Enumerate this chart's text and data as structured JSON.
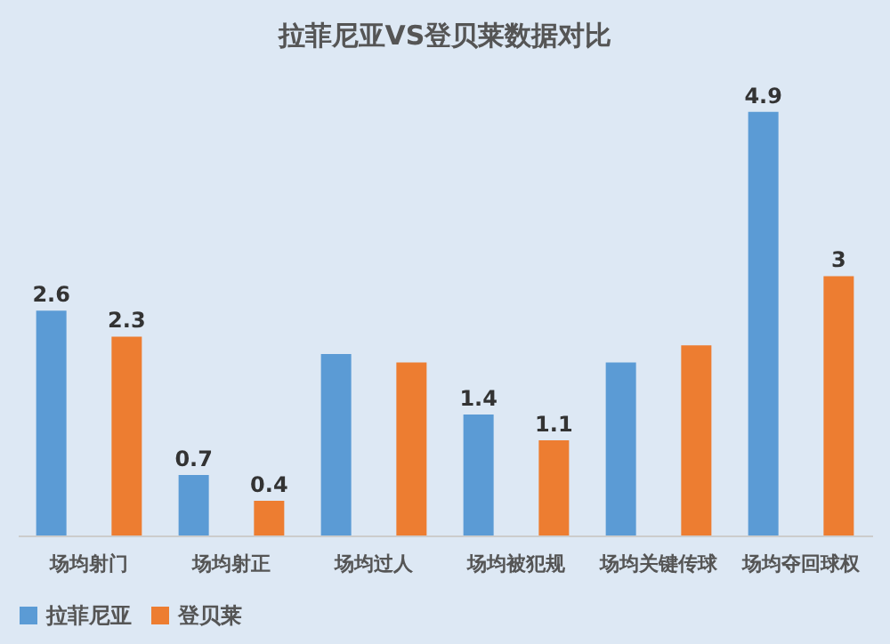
{
  "chart_data": {
    "type": "bar",
    "title": "拉菲尼亚VS登贝莱数据对比",
    "categories": [
      "场均射门",
      "场均射正",
      "场均过人",
      "场均被犯规",
      "场均关键传球",
      "场均夺回球权"
    ],
    "series": [
      {
        "name": "拉菲尼亚",
        "color": "#5b9bd5",
        "values": [
          2.6,
          0.7,
          2.1,
          1.4,
          2.0,
          4.9
        ],
        "value_labels": [
          "2.6",
          "0.7",
          null,
          "1.4",
          null,
          "4.9"
        ]
      },
      {
        "name": "登贝莱",
        "color": "#ed7d31",
        "values": [
          2.3,
          0.4,
          2.0,
          1.1,
          2.2,
          3
        ],
        "value_labels": [
          "2.3",
          "0.4",
          null,
          "1.1",
          null,
          "3"
        ]
      }
    ],
    "legend": "bottom",
    "grid": false
  }
}
